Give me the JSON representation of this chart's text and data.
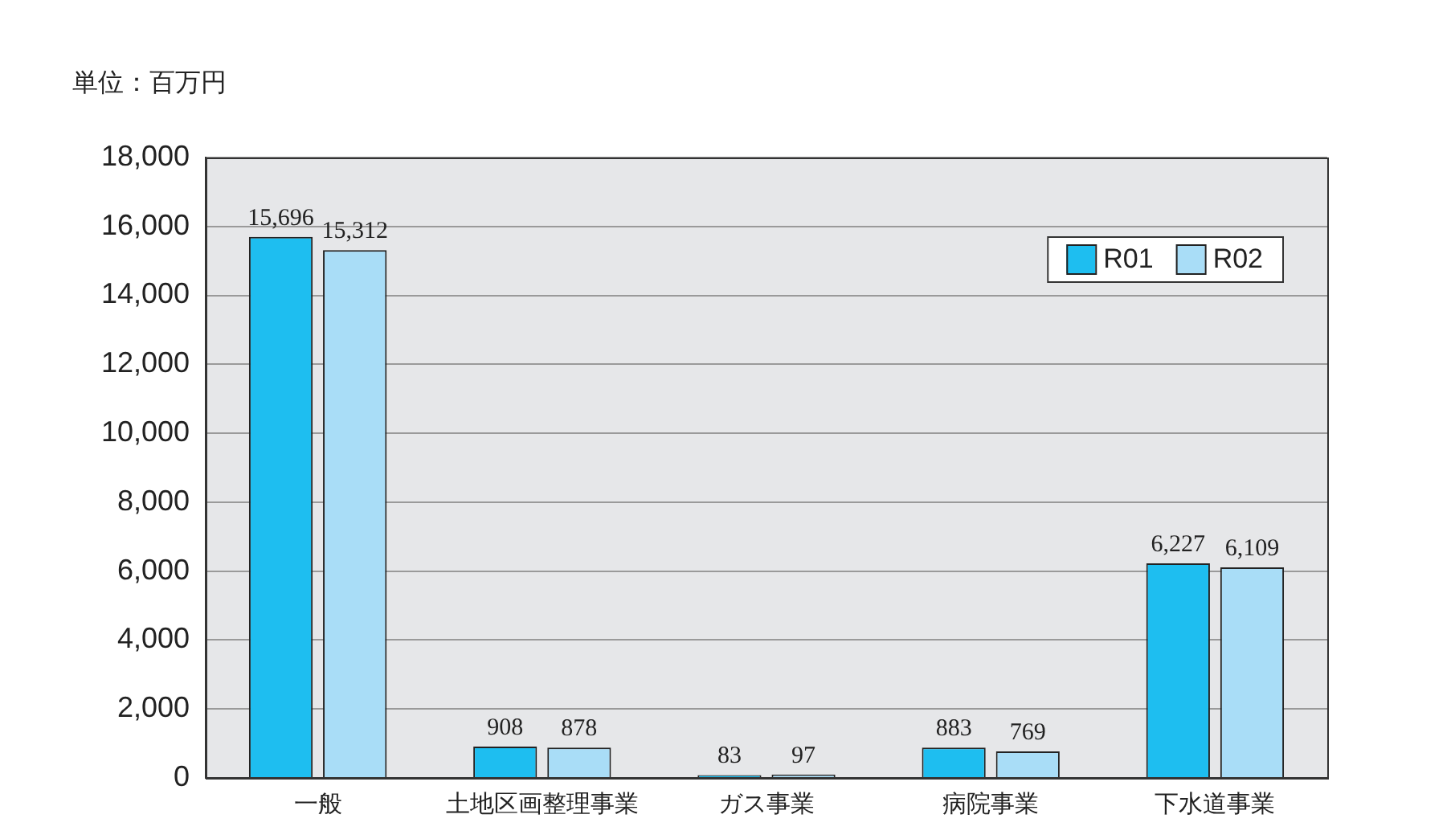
{
  "chart_data": {
    "type": "bar",
    "ylabel": "単位：百万円",
    "categories": [
      "一般",
      "土地区画整理事業",
      "ガス事業",
      "病院事業",
      "下水道事業"
    ],
    "series": [
      {
        "name": "R01",
        "color": "#1ebef0",
        "values": [
          15696,
          908,
          83,
          883,
          6227
        ],
        "value_labels": [
          "15,696",
          "908",
          "83",
          "883",
          "6,227"
        ]
      },
      {
        "name": "R02",
        "color": "#a9ddf7",
        "values": [
          15312,
          878,
          97,
          769,
          6109
        ],
        "value_labels": [
          "15,312",
          "878",
          "97",
          "769",
          "6,109"
        ]
      }
    ],
    "ylim": [
      0,
      18000
    ],
    "yticks": [
      {
        "value": 0,
        "label": "0"
      },
      {
        "value": 2000,
        "label": "2,000"
      },
      {
        "value": 4000,
        "label": "4,000"
      },
      {
        "value": 6000,
        "label": "6,000"
      },
      {
        "value": 8000,
        "label": "8,000"
      },
      {
        "value": 10000,
        "label": "10,000"
      },
      {
        "value": 12000,
        "label": "12,000"
      },
      {
        "value": 14000,
        "label": "14,000"
      },
      {
        "value": 16000,
        "label": "16,000"
      },
      {
        "value": 18000,
        "label": "18,000"
      }
    ],
    "grid": "y",
    "legend": "top right"
  }
}
